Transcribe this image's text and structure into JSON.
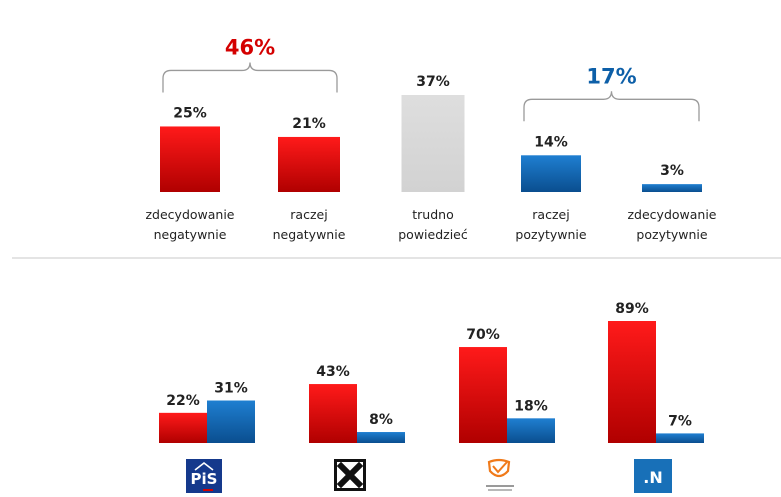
{
  "colors": {
    "negative": "#d40000",
    "neutral": "#d9d9d9",
    "positive": "#0d5fa8",
    "divider": "#c8c8c8",
    "brace": "#9a9a9a"
  },
  "chart_data": [
    {
      "type": "bar",
      "categories": [
        "zdecydowanie negatywnie",
        "raczej negatywnie",
        "trudno powiedzieć",
        "raczej pozytywnie",
        "zdecydowanie pozytywnie"
      ],
      "category_lines": [
        [
          "zdecydowanie",
          "negatywnie"
        ],
        [
          "raczej",
          "negatywnie"
        ],
        [
          "trudno",
          "powiedzieć"
        ],
        [
          "raczej",
          "pozytywnie"
        ],
        [
          "zdecydowanie",
          "pozytywnie"
        ]
      ],
      "values": [
        25,
        21,
        37,
        14,
        3
      ],
      "value_labels": [
        "25%",
        "21%",
        "37%",
        "14%",
        "3%"
      ],
      "bar_colors": [
        "negative",
        "negative",
        "neutral",
        "positive",
        "positive"
      ],
      "groups": [
        {
          "label": "46%",
          "members": [
            0,
            1
          ],
          "color": "negative"
        },
        {
          "label": "17%",
          "members": [
            3,
            4
          ],
          "color": "positive"
        }
      ],
      "ylim": [
        0,
        40
      ]
    },
    {
      "type": "bar",
      "categories": [
        "PiS",
        "Kukiz'15",
        "Platforma Obywatelska",
        ".N"
      ],
      "logos": [
        "pis-logo",
        "kukiz-logo",
        "po-logo",
        "nowoczesna-logo"
      ],
      "series": [
        {
          "values": [
            22,
            43,
            70,
            89
          ],
          "labels": [
            "22%",
            "43%",
            "70%",
            "89%"
          ],
          "color": "negative"
        },
        {
          "values": [
            31,
            8,
            18,
            7
          ],
          "labels": [
            "31%",
            "8%",
            "18%",
            "7%"
          ],
          "color": "positive"
        }
      ],
      "ylim": [
        0,
        100
      ]
    }
  ],
  "logos": {
    "pis_text": "PiS",
    "nowoczesna_text": ".N"
  }
}
